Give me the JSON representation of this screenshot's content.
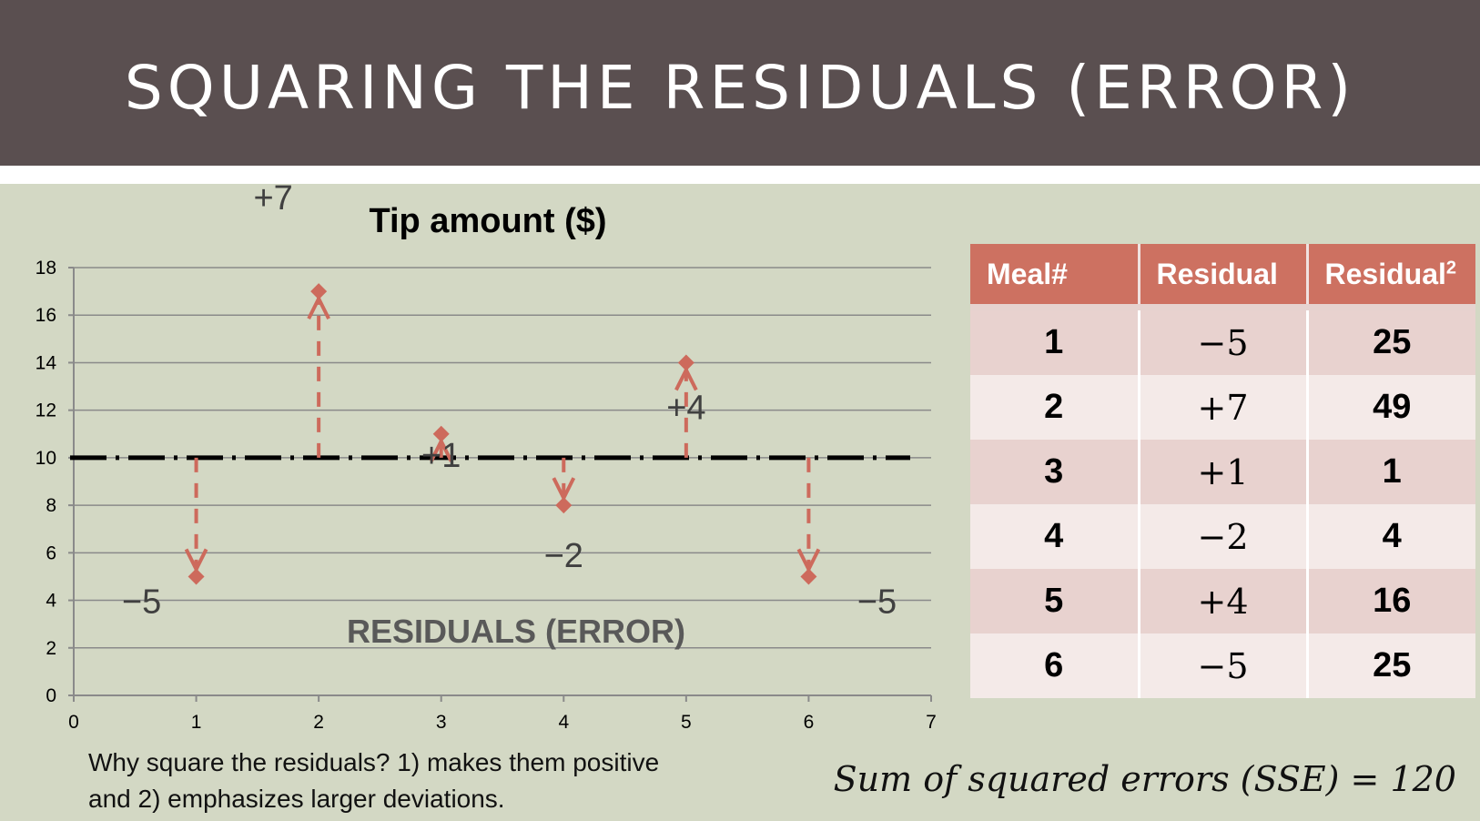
{
  "slide": {
    "title": "SQUARING THE RESIDUALS (ERROR)"
  },
  "chart_data": {
    "type": "scatter",
    "title": "Tip amount ($)",
    "xlim": [
      0,
      7
    ],
    "ylim": [
      0,
      18
    ],
    "x_ticks": [
      "0",
      "1",
      "2",
      "3",
      "4",
      "5",
      "6",
      "7"
    ],
    "y_ticks": [
      "0",
      "2",
      "4",
      "6",
      "8",
      "10",
      "12",
      "14",
      "16",
      "18"
    ],
    "grid": true,
    "mean_line": 10,
    "points": [
      {
        "x": 1,
        "y": 5
      },
      {
        "x": 2,
        "y": 17
      },
      {
        "x": 3,
        "y": 11
      },
      {
        "x": 4,
        "y": 8
      },
      {
        "x": 5,
        "y": 14
      },
      {
        "x": 6,
        "y": 5
      }
    ],
    "residual_labels": [
      "−5",
      "+7",
      "+1",
      "−2",
      "+4",
      "−5"
    ],
    "annotation": "RESIDUALS (ERROR)",
    "colors": {
      "points": "#cd6a5c",
      "mean_line": "#000000",
      "grid": "#8a8a8a"
    }
  },
  "table": {
    "headers": [
      "Meal#",
      "Residual",
      "Residual"
    ],
    "header_superscript": "2",
    "rows": [
      {
        "meal": "1",
        "residual": "−5",
        "squared": "25"
      },
      {
        "meal": "2",
        "residual": "+7",
        "squared": "49"
      },
      {
        "meal": "3",
        "residual": "+1",
        "squared": "1"
      },
      {
        "meal": "4",
        "residual": "−2",
        "squared": "4"
      },
      {
        "meal": "5",
        "residual": "+4",
        "squared": "16"
      },
      {
        "meal": "6",
        "residual": "−5",
        "squared": "25"
      }
    ]
  },
  "caption": {
    "line1": "Why square the residuals? 1) makes them positive",
    "line2": "and 2) emphasizes larger deviations."
  },
  "sse": "Sum of squared errors (SSE) = 120"
}
